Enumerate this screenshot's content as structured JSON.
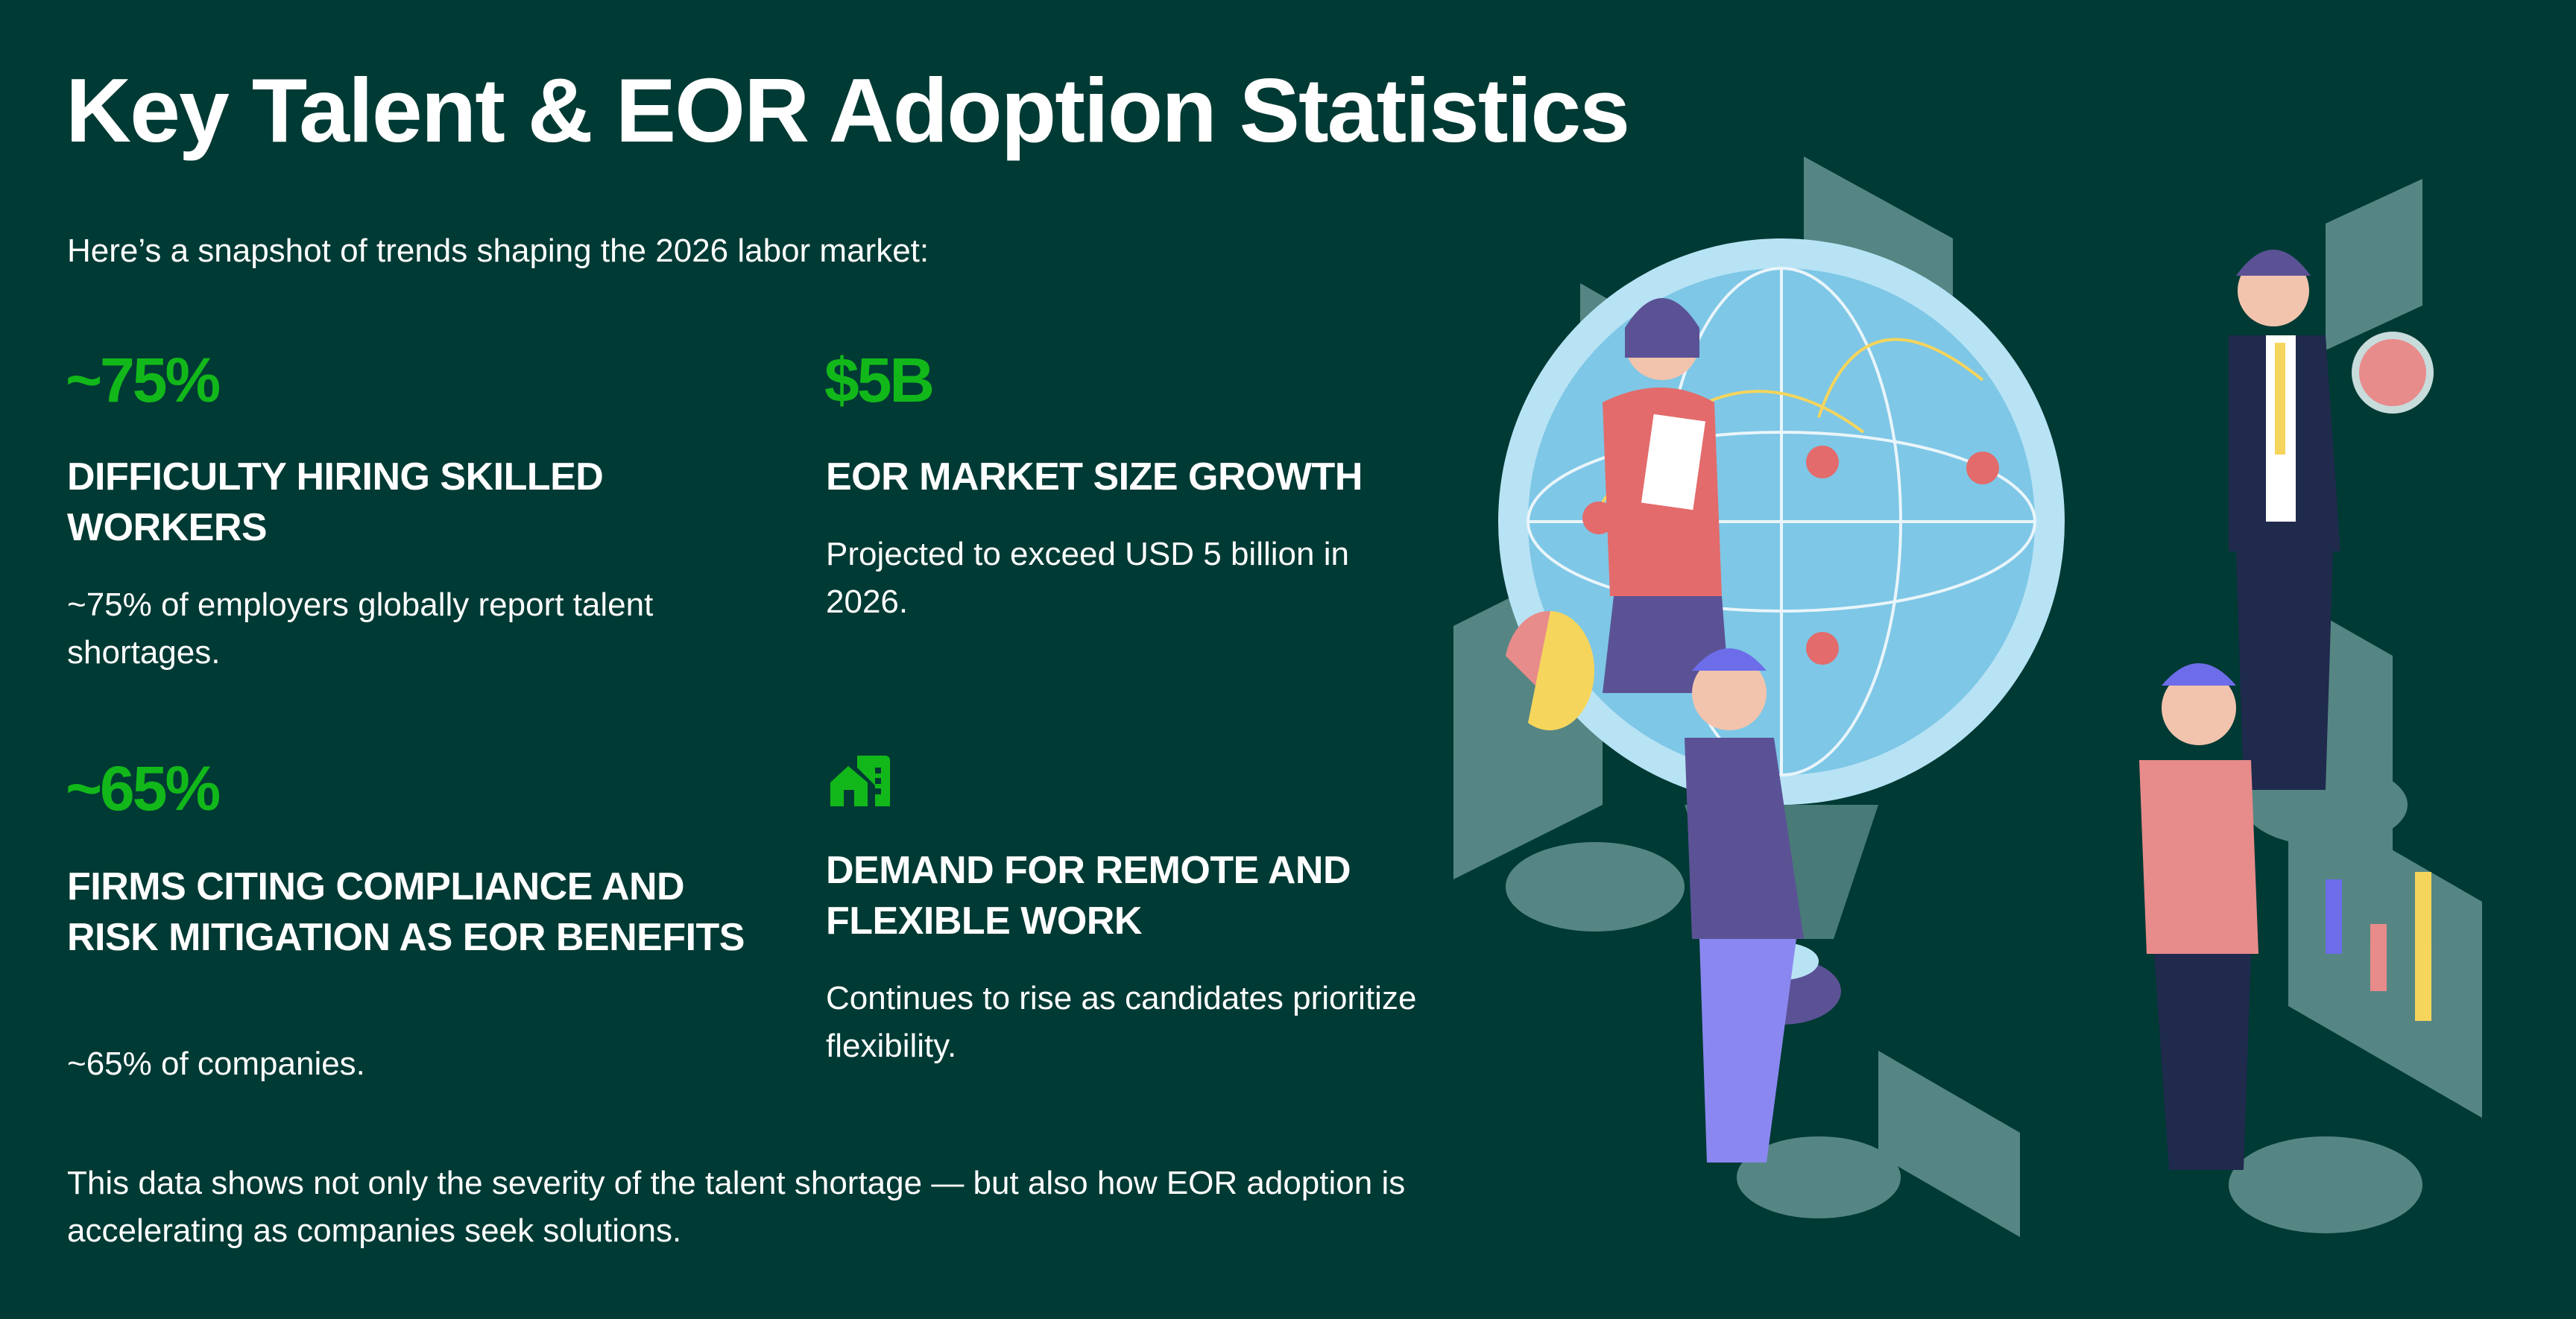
{
  "title": "Key Talent & EOR Adoption Statistics",
  "subtitle": "Here’s a snapshot of trends shaping the 2026 labor market:",
  "stats": [
    {
      "value": "~75%",
      "heading": "DIFFICULTY HIRING SKILLED WORKERS",
      "body": "~75% of employers globally report talent shortages."
    },
    {
      "value": "$5B",
      "heading": "EOR MARKET SIZE GROWTH",
      "body": "Projected to exceed USD 5 billion in 2026."
    },
    {
      "value": "~65%",
      "heading": "FIRMS CITING COMPLIANCE AND RISK MITIGATION AS EOR BENEFITS",
      "body": "~65% of companies."
    },
    {
      "icon": "home-building-icon",
      "heading": "DEMAND FOR REMOTE AND FLEXIBLE WORK",
      "body": "Continues to rise as candidates prioritize flexibility."
    }
  ],
  "footer": "This data shows not only the severity of the talent shortage — but also how EOR adoption is accelerating as companies seek solutions.",
  "colors": {
    "background": "#003a34",
    "accent": "#12b81a",
    "text": "#ffffff"
  }
}
